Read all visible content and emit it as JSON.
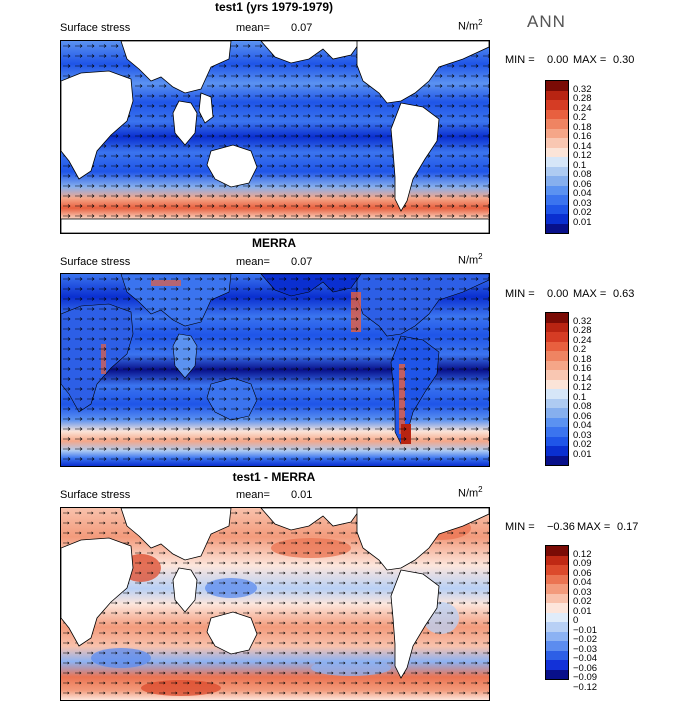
{
  "season": "ANN",
  "palette": {
    "abs": [
      "#08108a",
      "#0a2fd0",
      "#1f55e8",
      "#3b74ef",
      "#5b92f1",
      "#86afee",
      "#aecbf2",
      "#d6e6f8",
      "#fbe4d8",
      "#f9c7b2",
      "#f5a688",
      "#ef8462",
      "#e8603f",
      "#d53c24",
      "#b82412",
      "#7a0b05"
    ],
    "diff": [
      "#08108a",
      "#1231d8",
      "#2d5fe6",
      "#5c8cef",
      "#8cb2f3",
      "#b8d0f5",
      "#e0ecfa",
      "#fde6dc",
      "#f9c2ac",
      "#f39b7c",
      "#eb7452",
      "#dc4a2c",
      "#c02914",
      "#7a0b05"
    ]
  },
  "panels": [
    {
      "title": "test1 (yrs 1979-1979)",
      "variable": "Surface stress",
      "mean_label": "mean=",
      "mean_value": "0.07",
      "units": "N/m",
      "units_sup": "2",
      "min_label": "MIN =",
      "min_value": "0.00",
      "max_label": "MAX =",
      "max_value": "0.30",
      "colorbar_ticks": [
        "0.32",
        "0.28",
        "0.24",
        "0.2",
        "0.18",
        "0.16",
        "0.14",
        "0.12",
        "0.1",
        "0.08",
        "0.06",
        "0.04",
        "0.03",
        "0.02",
        "0.01"
      ]
    },
    {
      "title": "MERRA",
      "variable": "Surface stress",
      "mean_label": "mean=",
      "mean_value": "0.07",
      "units": "N/m",
      "units_sup": "2",
      "min_label": "MIN =",
      "min_value": "0.00",
      "max_label": "MAX =",
      "max_value": "0.63",
      "colorbar_ticks": [
        "0.32",
        "0.28",
        "0.24",
        "0.2",
        "0.18",
        "0.16",
        "0.14",
        "0.12",
        "0.1",
        "0.08",
        "0.06",
        "0.04",
        "0.03",
        "0.02",
        "0.01"
      ]
    },
    {
      "title": "test1 - MERRA",
      "variable": "Surface stress",
      "mean_label": "mean=",
      "mean_value": "0.01",
      "units": "N/m",
      "units_sup": "2",
      "min_label": "MIN =",
      "min_value": "−0.36",
      "max_label": "MAX =",
      "max_value": "0.17",
      "colorbar_ticks": [
        "0.12",
        "0.09",
        "0.06",
        "0.04",
        "0.03",
        "0.02",
        "0.01",
        "0",
        "−0.01",
        "−0.02",
        "−0.03",
        "−0.04",
        "−0.06",
        "−0.09",
        "−0.12"
      ]
    }
  ]
}
